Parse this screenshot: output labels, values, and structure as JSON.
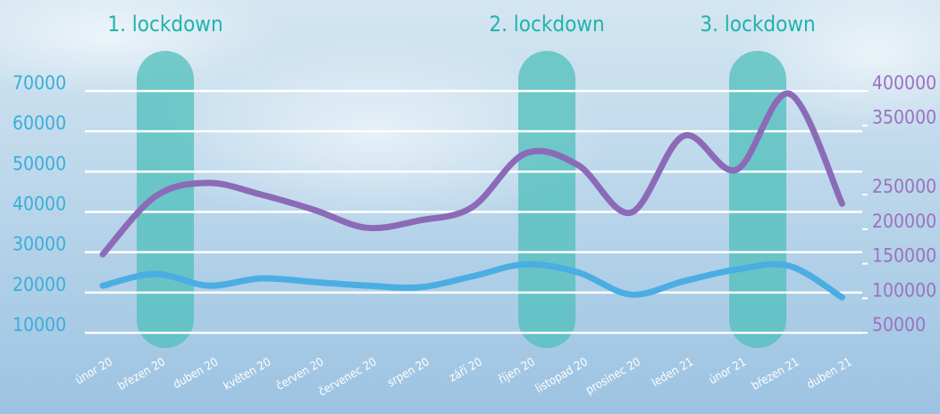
{
  "chart_data": {
    "type": "line",
    "annotations": [
      "1. lockdown",
      "2. lockdown",
      "3. lockdown"
    ],
    "categories": [
      "únor 20",
      "březen 20",
      "duben 20",
      "květen 20",
      "červen 20",
      "červenec 20",
      "srpen 20",
      "září 20",
      "říjen 20",
      "listopad 20",
      "prosinec 20",
      "leden 21",
      "únor 21",
      "březen 21",
      "duben 21"
    ],
    "series": [
      {
        "color": "#4aaee2",
        "values": [
          21700,
          24600,
          21700,
          23500,
          22600,
          21700,
          21300,
          24000,
          27000,
          25000,
          19500,
          22800,
          25700,
          26600,
          18800
        ]
      },
      {
        "color": "#8b6bb7",
        "axis": "y2",
        "values": [
          163600,
          247600,
          267000,
          250000,
          228000,
          202000,
          212700,
          232000,
          309600,
          292800,
          224000,
          335000,
          286000,
          396000,
          237000
        ]
      }
    ],
    "ylim": [
      10000,
      70000
    ],
    "yticks": [
      10000,
      20000,
      30000,
      40000,
      50000,
      60000,
      70000
    ],
    "y2lim": [
      50000,
      400000
    ],
    "y2ticks": [
      50000,
      100000,
      150000,
      200000,
      250000,
      350000,
      400000
    ],
    "grid": true
  }
}
